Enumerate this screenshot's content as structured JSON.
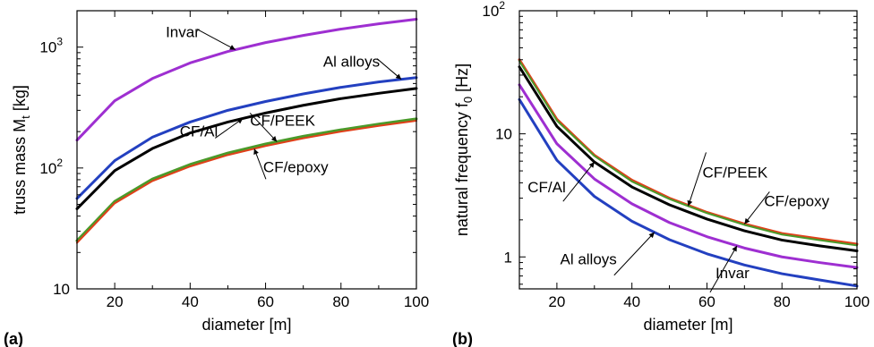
{
  "colors": {
    "invar": "#9e2fd1",
    "al_alloys": "#2340c0",
    "cf_al": "#000000",
    "cf_peek": "#4a9a2a",
    "cf_epoxy": "#e0401a"
  },
  "chart_data": [
    {
      "type": "line",
      "panel": "(a)",
      "xlabel": "diameter [m]",
      "ylabel": "truss mass M",
      "ylabel_sub": "t",
      "ylabel_unit": " [kg]",
      "xlim": [
        10,
        100
      ],
      "ylim": [
        10,
        2000
      ],
      "yscale": "log",
      "xticks": [
        20,
        40,
        60,
        80,
        100
      ],
      "yticks": [
        {
          "value": 10,
          "base": "10",
          "exp": ""
        },
        {
          "value": 100,
          "base": "10",
          "exp": "2"
        },
        {
          "value": 1000,
          "base": "10",
          "exp": "3"
        }
      ],
      "grid": false,
      "series": [
        {
          "name": "Invar",
          "color_key": "invar",
          "width": 3,
          "x": [
            10,
            20,
            30,
            40,
            50,
            60,
            70,
            80,
            90,
            100
          ],
          "y": [
            170,
            360,
            550,
            740,
            920,
            1090,
            1250,
            1410,
            1560,
            1700
          ]
        },
        {
          "name": "Al alloys",
          "color_key": "al_alloys",
          "width": 3,
          "x": [
            10,
            20,
            30,
            40,
            50,
            60,
            70,
            80,
            90,
            100
          ],
          "y": [
            56,
            115,
            180,
            240,
            300,
            355,
            410,
            465,
            515,
            560
          ]
        },
        {
          "name": "CF/Al",
          "color_key": "cf_al",
          "width": 3,
          "x": [
            10,
            20,
            30,
            40,
            50,
            60,
            70,
            80,
            90,
            100
          ],
          "y": [
            46,
            95,
            145,
            195,
            240,
            285,
            330,
            375,
            415,
            455
          ]
        },
        {
          "name": "CF/PEEK",
          "color_key": "cf_peek",
          "width": 3,
          "x": [
            10,
            20,
            30,
            40,
            50,
            60,
            70,
            80,
            90,
            100
          ],
          "y": [
            25,
            53,
            81,
            107,
            133,
            158,
            183,
            207,
            231,
            255
          ]
        },
        {
          "name": "CF/epoxy",
          "color_key": "cf_epoxy",
          "width": 2,
          "x": [
            10,
            20,
            30,
            40,
            50,
            60,
            70,
            80,
            90,
            100
          ],
          "y": [
            24,
            51,
            78,
            103,
            128,
            152,
            176,
            200,
            223,
            246
          ]
        }
      ],
      "annotations": [
        {
          "text": "Invar",
          "series": "Invar",
          "at_x": 52
        },
        {
          "text": "Al alloys",
          "series": "Al alloys",
          "at_x": 96
        },
        {
          "text": "CF/Al",
          "series": "CF/Al",
          "at_x": 54
        },
        {
          "text": "CF/PEEK",
          "series": "CF/PEEK",
          "at_x": 63
        },
        {
          "text": "CF/epoxy",
          "series": "CF/epoxy",
          "at_x": 57
        }
      ]
    },
    {
      "type": "line",
      "panel": "(b)",
      "xlabel": "diameter [m]",
      "ylabel": "natural frequency f",
      "ylabel_sub": "0",
      "ylabel_unit": " [Hz]",
      "xlim": [
        10,
        100
      ],
      "ylim": [
        0.55,
        100
      ],
      "yscale": "log",
      "xticks": [
        20,
        40,
        60,
        80,
        100
      ],
      "yticks": [
        {
          "value": 1,
          "base": "1",
          "exp": ""
        },
        {
          "value": 10,
          "base": "10",
          "exp": ""
        },
        {
          "value": 100,
          "base": "10",
          "exp": "2"
        }
      ],
      "grid": false,
      "series": [
        {
          "name": "CF/epoxy",
          "color_key": "cf_epoxy",
          "width": 3,
          "x": [
            10,
            20,
            30,
            40,
            50,
            60,
            70,
            80,
            90,
            100
          ],
          "y": [
            40,
            13.1,
            6.7,
            4.2,
            3.0,
            2.3,
            1.85,
            1.55,
            1.4,
            1.27
          ]
        },
        {
          "name": "CF/PEEK",
          "color_key": "cf_peek",
          "width": 2,
          "x": [
            10,
            20,
            30,
            40,
            50,
            60,
            70,
            80,
            90,
            100
          ],
          "y": [
            39,
            12.8,
            6.6,
            4.1,
            2.95,
            2.27,
            1.82,
            1.52,
            1.37,
            1.24
          ]
        },
        {
          "name": "CF/Al",
          "color_key": "cf_al",
          "width": 3,
          "x": [
            10,
            20,
            30,
            40,
            50,
            60,
            70,
            80,
            90,
            100
          ],
          "y": [
            35,
            11.5,
            5.9,
            3.7,
            2.65,
            2.03,
            1.63,
            1.37,
            1.23,
            1.12
          ]
        },
        {
          "name": "Invar",
          "color_key": "invar",
          "width": 3,
          "x": [
            10,
            20,
            30,
            40,
            50,
            60,
            70,
            80,
            90,
            100
          ],
          "y": [
            25,
            8.3,
            4.3,
            2.7,
            1.9,
            1.46,
            1.18,
            1.0,
            0.9,
            0.82
          ]
        },
        {
          "name": "Al alloys",
          "color_key": "al_alloys",
          "width": 3,
          "x": [
            10,
            20,
            30,
            40,
            50,
            60,
            70,
            80,
            90,
            100
          ],
          "y": [
            19,
            6.1,
            3.1,
            1.95,
            1.38,
            1.06,
            0.86,
            0.73,
            0.65,
            0.58
          ]
        }
      ],
      "annotations": [
        {
          "text": "CF/Al",
          "series": "CF/Al",
          "at_x": 30
        },
        {
          "text": "CF/PEEK",
          "series": "CF/PEEK",
          "at_x": 55
        },
        {
          "text": "CF/epoxy",
          "series": "CF/epoxy",
          "at_x": 70
        },
        {
          "text": "Al alloys",
          "series": "Al alloys",
          "at_x": 46
        },
        {
          "text": "Invar",
          "series": "Invar",
          "at_x": 68
        }
      ]
    }
  ]
}
